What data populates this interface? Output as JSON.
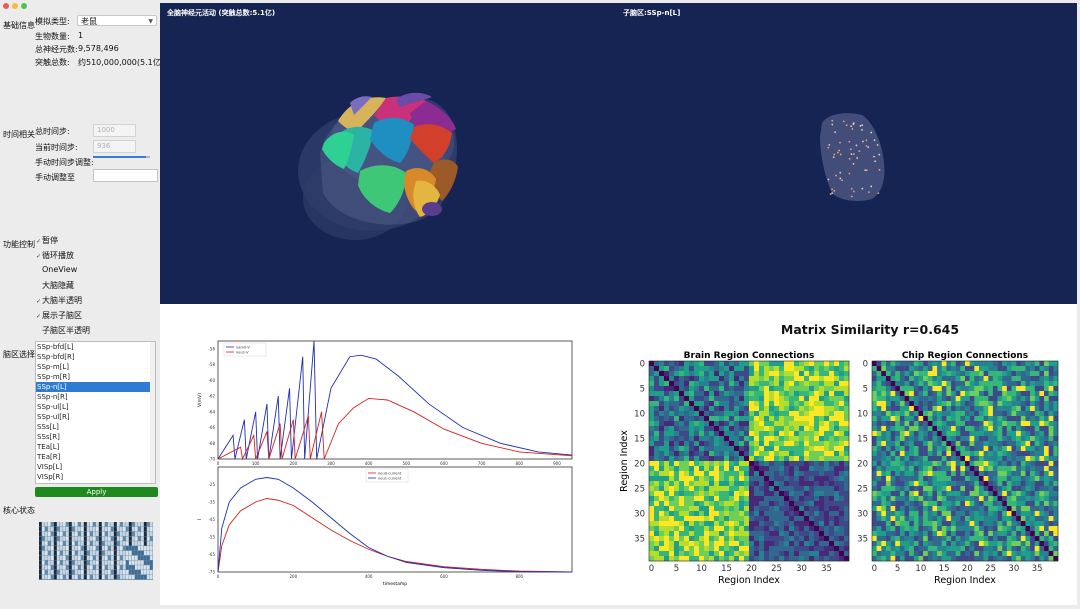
{
  "sidebar": {
    "basic_section": "基础信息",
    "sim_type_label": "模拟类型:",
    "sim_type_value": "老鼠",
    "organism_label": "生物数量:",
    "organism_value": "1",
    "neurons_label": "总神经元数:",
    "neurons_value": "9,578,496",
    "synapses_label": "突触总数:",
    "synapses_value": "约510,000,000(5.1亿)",
    "time_section": "时间相关",
    "total_steps_label": "总时间步:",
    "total_steps_value": "1000",
    "current_step_label": "当前时间步:",
    "current_step_value": "936",
    "manual_adjust_label": "手动时间步调整:",
    "manual_goto_label": "手动调整至",
    "manual_goto_value": "",
    "slider_progress": 0.936,
    "function_section": "功能控制",
    "functions": [
      {
        "label": "暂停",
        "checked": true
      },
      {
        "label": "循环播放",
        "checked": true
      },
      {
        "label": "OneView",
        "checked": false
      },
      {
        "label": "大脑隐藏",
        "checked": false
      },
      {
        "label": "大脑半透明",
        "checked": true
      },
      {
        "label": "展示子脑区",
        "checked": true
      },
      {
        "label": "子脑区半透明",
        "checked": false
      }
    ],
    "region_section": "脑区选择",
    "regions": [
      "SSp-bfd[L]",
      "SSp-bfd[R]",
      "SSp-m[L]",
      "SSp-m[R]",
      "SSp-n[L]",
      "SSp-n[R]",
      "SSp-ul[L]",
      "SSp-ul[R]",
      "SSs[L]",
      "SSs[R]",
      "TEa[L]",
      "TEa[R]",
      "VISp[L]",
      "VISp[R]"
    ],
    "selected_region_index": 4,
    "apply_label": "Apply",
    "core_section": "核心状态"
  },
  "view3d": {
    "left_title": "全脑神经元活动 (突触总数:5.1亿)",
    "right_title": "子脑区:SSp-n[L]"
  },
  "chart_data": [
    {
      "type": "line",
      "title": "",
      "xlabel": "timestamp",
      "ylabel": "V(mV)",
      "xlim": [
        0,
        940
      ],
      "ylim": [
        -70,
        -55
      ],
      "x_ticks": [
        0,
        100,
        200,
        300,
        400,
        500,
        600,
        700,
        800,
        900
      ],
      "y_ticks": [
        -70,
        -68,
        -66,
        -64,
        -62,
        -60,
        -58,
        -56
      ],
      "series": [
        {
          "name": "nam0-V",
          "color": "#1f2fb4",
          "x": [
            0,
            40,
            45,
            70,
            75,
            100,
            105,
            130,
            135,
            160,
            165,
            190,
            195,
            225,
            230,
            255,
            262,
            300,
            350,
            380,
            420,
            480,
            560,
            650,
            750,
            850,
            940
          ],
          "y": [
            -70,
            -67,
            -70,
            -65,
            -70,
            -64,
            -70,
            -63,
            -70,
            -62,
            -70,
            -61,
            -70,
            -57,
            -70,
            -55,
            -70,
            -61,
            -57,
            -56.8,
            -57.3,
            -59.5,
            -63,
            -66,
            -68,
            -69.1,
            -69.5
          ]
        },
        {
          "name": "neu1-V",
          "color": "#d42020",
          "x": [
            0,
            60,
            65,
            95,
            100,
            130,
            135,
            165,
            170,
            200,
            205,
            240,
            245,
            275,
            282,
            320,
            360,
            400,
            450,
            520,
            600,
            700,
            800,
            940
          ],
          "y": [
            -70,
            -68.5,
            -70,
            -67,
            -70,
            -66.5,
            -70,
            -65.5,
            -70,
            -65,
            -70,
            -64.5,
            -70,
            -64,
            -70,
            -65.5,
            -63.5,
            -62.3,
            -62.5,
            -64,
            -66.2,
            -68,
            -69.1,
            -69.6
          ]
        }
      ]
    },
    {
      "type": "line",
      "title": "",
      "xlabel": "timestamp",
      "ylabel": "I",
      "xlim": [
        0,
        940
      ],
      "ylim": [
        -75,
        -15
      ],
      "x_ticks": [
        0,
        200,
        400,
        600,
        800
      ],
      "y_ticks": [
        -75,
        -65,
        -55,
        -45,
        -35,
        -25
      ],
      "series": [
        {
          "name": "neu0-current",
          "color": "#d42020",
          "x": [
            0,
            10,
            30,
            60,
            100,
            130,
            160,
            200,
            250,
            300,
            350,
            400,
            450,
            500,
            600,
            700,
            800,
            940
          ],
          "y": [
            -75,
            -60,
            -48,
            -40,
            -35,
            -33,
            -34,
            -37,
            -44,
            -51,
            -57,
            -62,
            -66,
            -69,
            -72,
            -73.5,
            -74.5,
            -75
          ]
        },
        {
          "name": "neu1-current",
          "color": "#1f2fb4",
          "x": [
            0,
            10,
            30,
            60,
            100,
            130,
            160,
            200,
            250,
            300,
            350,
            400,
            450,
            500,
            600,
            700,
            800,
            940
          ],
          "y": [
            -75,
            -50,
            -35,
            -27,
            -22,
            -21,
            -22,
            -27,
            -35,
            -44,
            -53,
            -61,
            -66,
            -69.5,
            -72.5,
            -74,
            -74.8,
            -75
          ]
        }
      ]
    },
    {
      "type": "heatmap",
      "title": "Matrix Similarity r=0.645",
      "panels": [
        {
          "title": "Brain Region Connections",
          "xlabel": "Region Index",
          "ylabel": "Region Index",
          "size": 40,
          "x_ticks": [
            0,
            5,
            10,
            15,
            20,
            25,
            30,
            35
          ],
          "y_ticks": [
            0,
            5,
            10,
            15,
            20,
            25,
            30,
            35
          ]
        },
        {
          "title": "Chip Region Connections",
          "xlabel": "Region Index",
          "ylabel": "",
          "size": 40,
          "x_ticks": [
            0,
            5,
            10,
            15,
            20,
            25,
            30,
            35
          ],
          "y_ticks": [
            0,
            5,
            10,
            15,
            20,
            25,
            30,
            35
          ]
        }
      ],
      "colormap": "viridis"
    }
  ]
}
